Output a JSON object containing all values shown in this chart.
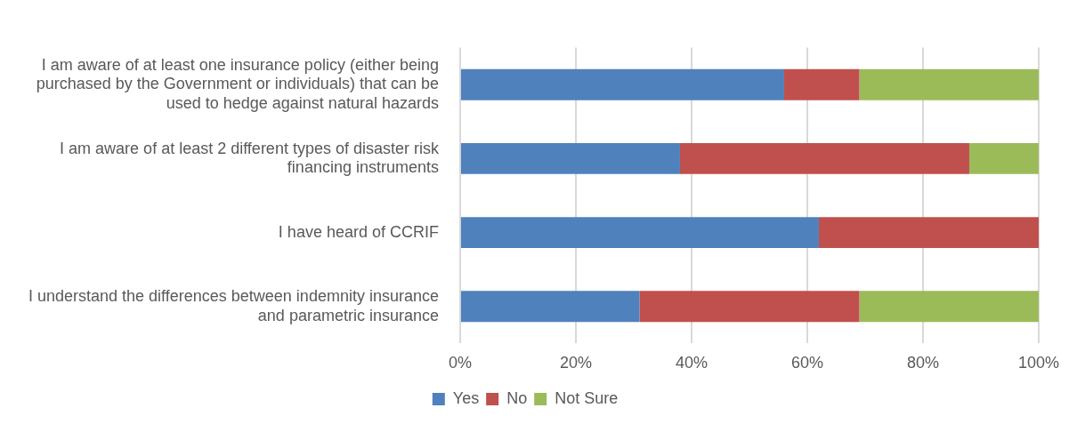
{
  "chart_data": {
    "type": "bar",
    "orientation": "horizontal",
    "stacked": true,
    "categories": [
      "I am aware of at least one insurance policy (either being purchased by the Government or individuals) that can be used to hedge against natural hazards",
      "I am aware of at least 2 different types of disaster risk financing instruments",
      "I have heard of CCRIF",
      "I understand the differences between indemnity insurance and parametric insurance"
    ],
    "series": [
      {
        "name": "Yes",
        "color": "#4f81bd",
        "values": [
          56,
          38,
          62,
          31
        ]
      },
      {
        "name": "No",
        "color": "#c0504d",
        "values": [
          13,
          50,
          38,
          38
        ]
      },
      {
        "name": "Not Sure",
        "color": "#9bbb59",
        "values": [
          31,
          12,
          0,
          31
        ]
      }
    ],
    "xlim": [
      0,
      100
    ],
    "xticks": [
      {
        "value": 0,
        "label": "0%"
      },
      {
        "value": 20,
        "label": "20%"
      },
      {
        "value": 40,
        "label": "40%"
      },
      {
        "value": 60,
        "label": "60%"
      },
      {
        "value": 80,
        "label": "80%"
      },
      {
        "value": 100,
        "label": "100%"
      }
    ],
    "grid": "x",
    "legend": "bottom"
  }
}
